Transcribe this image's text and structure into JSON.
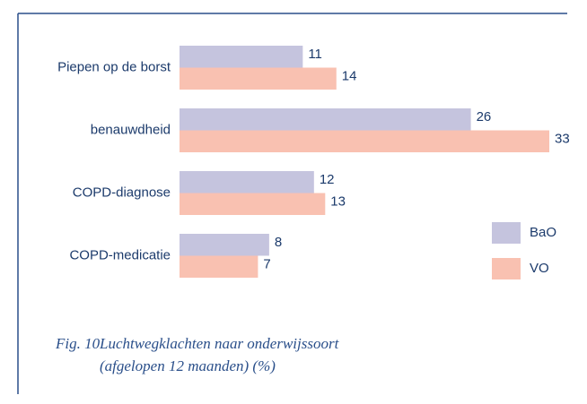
{
  "chart_data": {
    "type": "hbar",
    "figure_label": "Fig. 10",
    "title": "Luchtwegklachten naar onderwijssoort",
    "subtitle": "(afgelopen 12 maanden) (%)",
    "categories": [
      "Piepen op de borst",
      "benauwdheid",
      "COPD-diagnose",
      "COPD-medicatie"
    ],
    "series": [
      {
        "name": "BaO",
        "color": "#c5c4de",
        "values": [
          11,
          26,
          12,
          8
        ]
      },
      {
        "name": "VO",
        "color": "#f9c1b1",
        "values": [
          14,
          33,
          13,
          7
        ]
      }
    ],
    "legend": "right"
  }
}
